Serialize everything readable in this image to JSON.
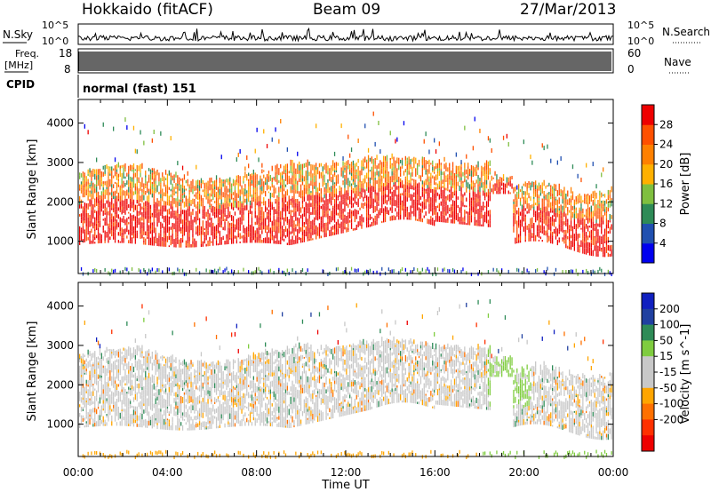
{
  "header": {
    "station": "Hokkaido (fitACF)",
    "beam": "Beam 09",
    "date": "27/Mar/2013"
  },
  "noise_panel": {
    "left_label": "N.Sky",
    "right_label": "N.Search",
    "y_tick_top": "10^5",
    "y_tick_bottom": "10^0"
  },
  "freq_panel": {
    "label_line1": "Freq.",
    "label_line2": "[MHz]",
    "y_tick_top": "18",
    "y_tick_bottom": "8",
    "right_label": "Nave",
    "right_tick_top": "60",
    "right_tick_bottom": "0"
  },
  "cpid_panel": {
    "label": "CPID",
    "mode": "normal (fast) 151"
  },
  "x_axis": {
    "label": "Time UT",
    "ticks": [
      "00:00",
      "04:00",
      "08:00",
      "12:00",
      "16:00",
      "20:00",
      "00:00"
    ]
  },
  "colors": {
    "power_scale": [
      "#0000ee",
      "#2050b0",
      "#2e8b57",
      "#7fbf3f",
      "#ffb000",
      "#ff8000",
      "#ff5000",
      "#ee0000"
    ],
    "velocity_scale": [
      "#1020c0",
      "#2040a0",
      "#2e8b57",
      "#7fcc3f",
      "#c8c8c8",
      "#c8c8c8",
      "#ffa500",
      "#ff7000",
      "#ff3000",
      "#ee0000"
    ],
    "ground_scatter": "#c8c8c8"
  },
  "chart_data": [
    {
      "type": "heatmap",
      "panel": "power",
      "ylabel": "Slant Range [km]",
      "xlabel": "",
      "xlim": [
        0,
        24
      ],
      "ylim": [
        180,
        4600
      ],
      "y_ticks": [
        1000,
        2000,
        3000,
        4000
      ],
      "colorbar": {
        "label": "Power [dB]",
        "range": [
          0,
          32
        ],
        "ticks": [
          4,
          8,
          12,
          16,
          20,
          24,
          28
        ]
      },
      "scatter_bands_km": [
        {
          "t_start": 0,
          "t_end": 9.5,
          "range_low": 900,
          "range_high": 2900,
          "power_db": 26
        },
        {
          "t_start": 9.5,
          "t_end": 18.5,
          "range_low": 1300,
          "range_high": 3100,
          "power_db": 24
        },
        {
          "t_start": 19,
          "t_end": 24,
          "range_low": 800,
          "range_high": 2400,
          "power_db": 22
        }
      ]
    },
    {
      "type": "heatmap",
      "panel": "velocity",
      "ylabel": "Slant Range [km]",
      "xlabel": "Time UT",
      "xlim": [
        0,
        24
      ],
      "ylim": [
        180,
        4600
      ],
      "y_ticks": [
        1000,
        2000,
        3000,
        4000
      ],
      "colorbar": {
        "label": "Velocity [m s^-1]",
        "ticks": [
          "200",
          "100",
          "50",
          "15",
          "-15",
          "-50",
          "-100",
          "-200"
        ]
      },
      "scatter_bands_km": [
        {
          "t_start": 0,
          "t_end": 9.5,
          "range_low": 900,
          "range_high": 2900,
          "velocity": 0
        },
        {
          "t_start": 9.5,
          "t_end": 18.5,
          "range_low": 1300,
          "range_high": 3100,
          "velocity": 0
        },
        {
          "t_start": 18.5,
          "t_end": 20.5,
          "range_low": 1300,
          "range_high": 2900,
          "velocity": 40
        },
        {
          "t_start": 19,
          "t_end": 24,
          "range_low": 800,
          "range_high": 2400,
          "velocity": 0
        }
      ]
    }
  ]
}
